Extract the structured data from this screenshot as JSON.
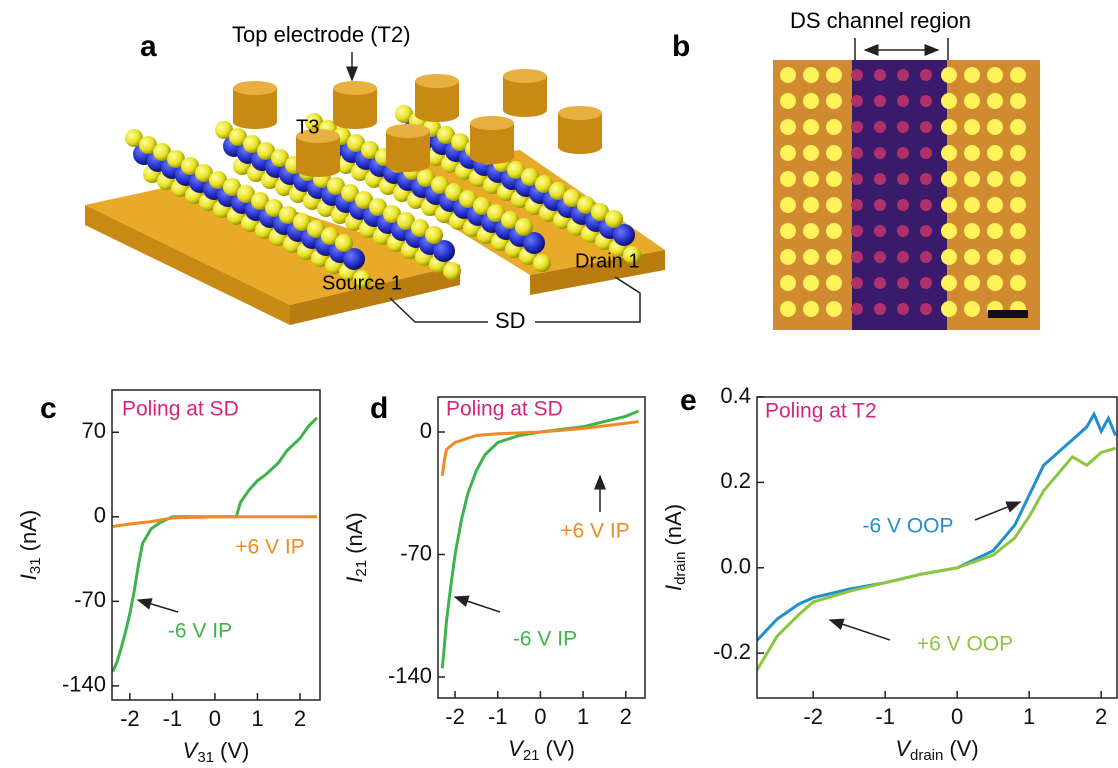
{
  "panel_a": {
    "label": "a",
    "top_electrode": "Top electrode (T2)",
    "t3": "T3",
    "source": "Source 1",
    "drain": "Drain 1",
    "sd": "SD"
  },
  "panel_b": {
    "label": "b",
    "channel": "DS channel region"
  },
  "chart_data": [
    {
      "type": "line",
      "panel": "c",
      "annotation": "Poling at SD",
      "xlabel": {
        "symbol": "V",
        "subscript": "31",
        "unit": "(V)"
      },
      "ylabel": {
        "symbol": "I",
        "subscript": "31",
        "unit": "(nA)"
      },
      "xlim": [
        -2.42,
        2.47
      ],
      "ylim": [
        -151.7,
        105
      ],
      "xticks": [
        -2,
        -1,
        0,
        1,
        2
      ],
      "yticks": [
        70,
        0,
        -70,
        -140
      ],
      "series": [
        {
          "name": "-6 V IP",
          "color": "#3cb44b",
          "x": [
            -2.4,
            -2.3,
            -2.2,
            -2.1,
            -2.0,
            -1.9,
            -1.8,
            -1.7,
            -1.5,
            -1.3,
            -1.0,
            0,
            0.5,
            0.6,
            0.8,
            1.0,
            1.2,
            1.5,
            1.7,
            2.0,
            2.2,
            2.4
          ],
          "values": [
            -128,
            -120,
            -108,
            -95,
            -80,
            -62,
            -40,
            -22,
            -10,
            -5,
            0,
            0,
            0,
            12,
            22,
            30,
            35,
            45,
            55,
            65,
            75,
            82
          ]
        },
        {
          "name": "+6 V IP",
          "color": "#f08a24",
          "x": [
            -2.4,
            -2.0,
            -1.5,
            -1.0,
            0,
            1,
            2,
            2.4
          ],
          "values": [
            -8,
            -6,
            -4,
            -1,
            0,
            0,
            0,
            0
          ]
        }
      ]
    },
    {
      "type": "line",
      "panel": "d",
      "annotation": "Poling at SD",
      "xlabel": {
        "symbol": "V",
        "subscript": "21",
        "unit": "(V)"
      },
      "ylabel": {
        "symbol": "I",
        "subscript": "21",
        "unit": "(nA)"
      },
      "xlim": [
        -2.4,
        2.45
      ],
      "ylim": [
        -152,
        20
      ],
      "xticks": [
        -2,
        -1,
        0,
        1,
        2
      ],
      "yticks": [
        0,
        -70,
        -140
      ],
      "series": [
        {
          "name": "-6 V IP",
          "color": "#3cb44b",
          "x": [
            -2.3,
            -2.25,
            -2.2,
            -2.1,
            -2.0,
            -1.85,
            -1.7,
            -1.5,
            -1.3,
            -1.0,
            -0.5,
            0,
            1,
            2,
            2.3
          ],
          "values": [
            -135,
            -122,
            -108,
            -88,
            -70,
            -50,
            -35,
            -22,
            -13,
            -6,
            -2,
            0,
            3,
            9,
            12
          ]
        },
        {
          "name": "+6 V IP",
          "color": "#f08a24",
          "x": [
            -2.3,
            -2.25,
            -2.2,
            -2.0,
            -1.5,
            -1,
            0,
            1,
            2,
            2.3
          ],
          "values": [
            -25,
            -16,
            -10,
            -6,
            -2,
            -1,
            0,
            2,
            5,
            6
          ]
        }
      ]
    },
    {
      "type": "line",
      "panel": "e",
      "annotation": "Poling at T2",
      "xlabel": {
        "symbol": "V",
        "subscript": "drain",
        "unit": "(V)"
      },
      "ylabel": {
        "symbol": "I",
        "subscript": "drain",
        "unit": "(nA)"
      },
      "xlim": [
        -2.78,
        2.22
      ],
      "ylim": [
        -0.305,
        0.4
      ],
      "xticks": [
        -2,
        -1,
        0,
        1,
        2
      ],
      "yticks": [
        0.4,
        0.2,
        {
          "value": 0,
          "label": "0.0"
        },
        -0.2
      ],
      "series": [
        {
          "name": "-6 V OOP",
          "color": "#1f8fcf",
          "x": [
            -2.78,
            -2.5,
            -2.2,
            -2.0,
            -1.5,
            -1.0,
            -0.5,
            0,
            0.5,
            0.8,
            1.0,
            1.2,
            1.4,
            1.6,
            1.8,
            1.9,
            2.0,
            2.1,
            2.2
          ],
          "values": [
            -0.17,
            -0.12,
            -0.085,
            -0.07,
            -0.05,
            -0.035,
            -0.015,
            0,
            0.04,
            0.1,
            0.17,
            0.24,
            0.27,
            0.3,
            0.33,
            0.36,
            0.32,
            0.35,
            0.31
          ]
        },
        {
          "name": "+6 V OOP",
          "color": "#8cc63f",
          "x": [
            -2.78,
            -2.5,
            -2.2,
            -2.0,
            -1.5,
            -1.0,
            -0.5,
            0,
            0.5,
            0.8,
            1.0,
            1.2,
            1.4,
            1.6,
            1.8,
            2.0,
            2.2
          ],
          "values": [
            -0.24,
            -0.16,
            -0.11,
            -0.08,
            -0.055,
            -0.035,
            -0.015,
            0,
            0.03,
            0.07,
            0.12,
            0.18,
            0.22,
            0.26,
            0.24,
            0.27,
            0.28
          ]
        }
      ]
    }
  ]
}
